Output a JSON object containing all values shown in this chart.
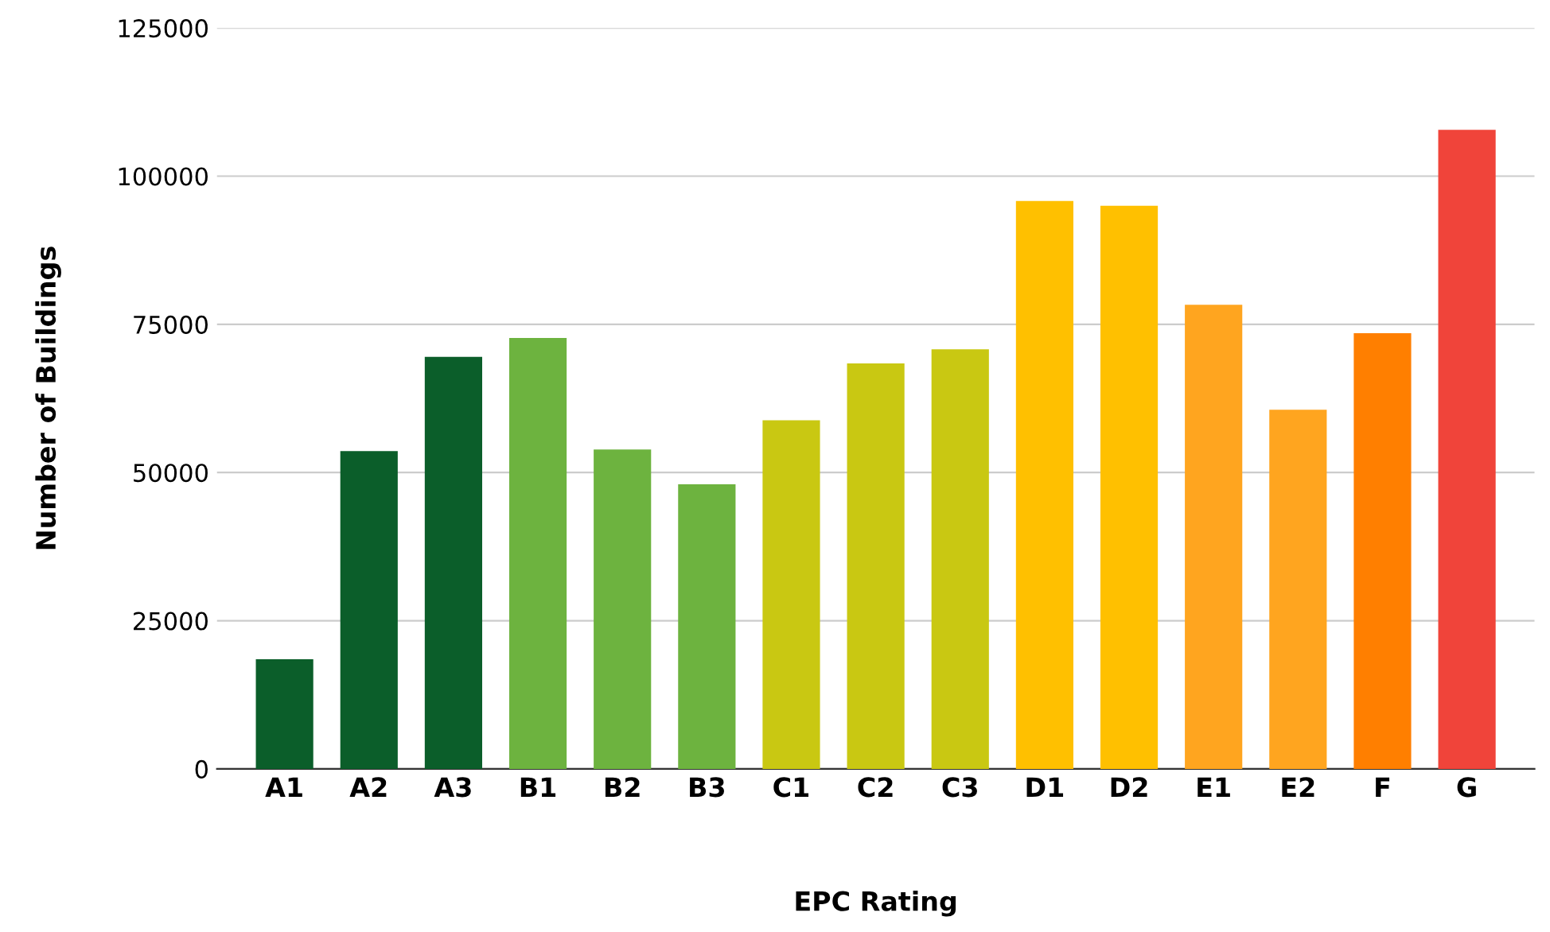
{
  "chart_data": {
    "type": "bar",
    "xlabel": "EPC Rating",
    "ylabel": "Number of Buildings",
    "categories": [
      "A1",
      "A2",
      "A3",
      "B1",
      "B2",
      "B3",
      "C1",
      "C2",
      "C3",
      "D1",
      "D2",
      "E1",
      "E2",
      "F",
      "G"
    ],
    "values": [
      18500,
      53600,
      69500,
      72700,
      53900,
      48000,
      58800,
      68400,
      70800,
      95800,
      95000,
      78300,
      60600,
      73500,
      107800
    ],
    "colors": [
      "#0b5e2a",
      "#0b5e2a",
      "#0b5e2a",
      "#6db33f",
      "#6db33f",
      "#6db33f",
      "#c9c812",
      "#c9c812",
      "#c9c812",
      "#ffc000",
      "#ffc000",
      "#ffa51f",
      "#ffa51f",
      "#ff7f00",
      "#f0443a"
    ],
    "ylim": [
      0,
      125000
    ],
    "yticks": [
      0,
      25000,
      50000,
      75000,
      100000,
      125000
    ],
    "grid": "y",
    "legend": false
  }
}
